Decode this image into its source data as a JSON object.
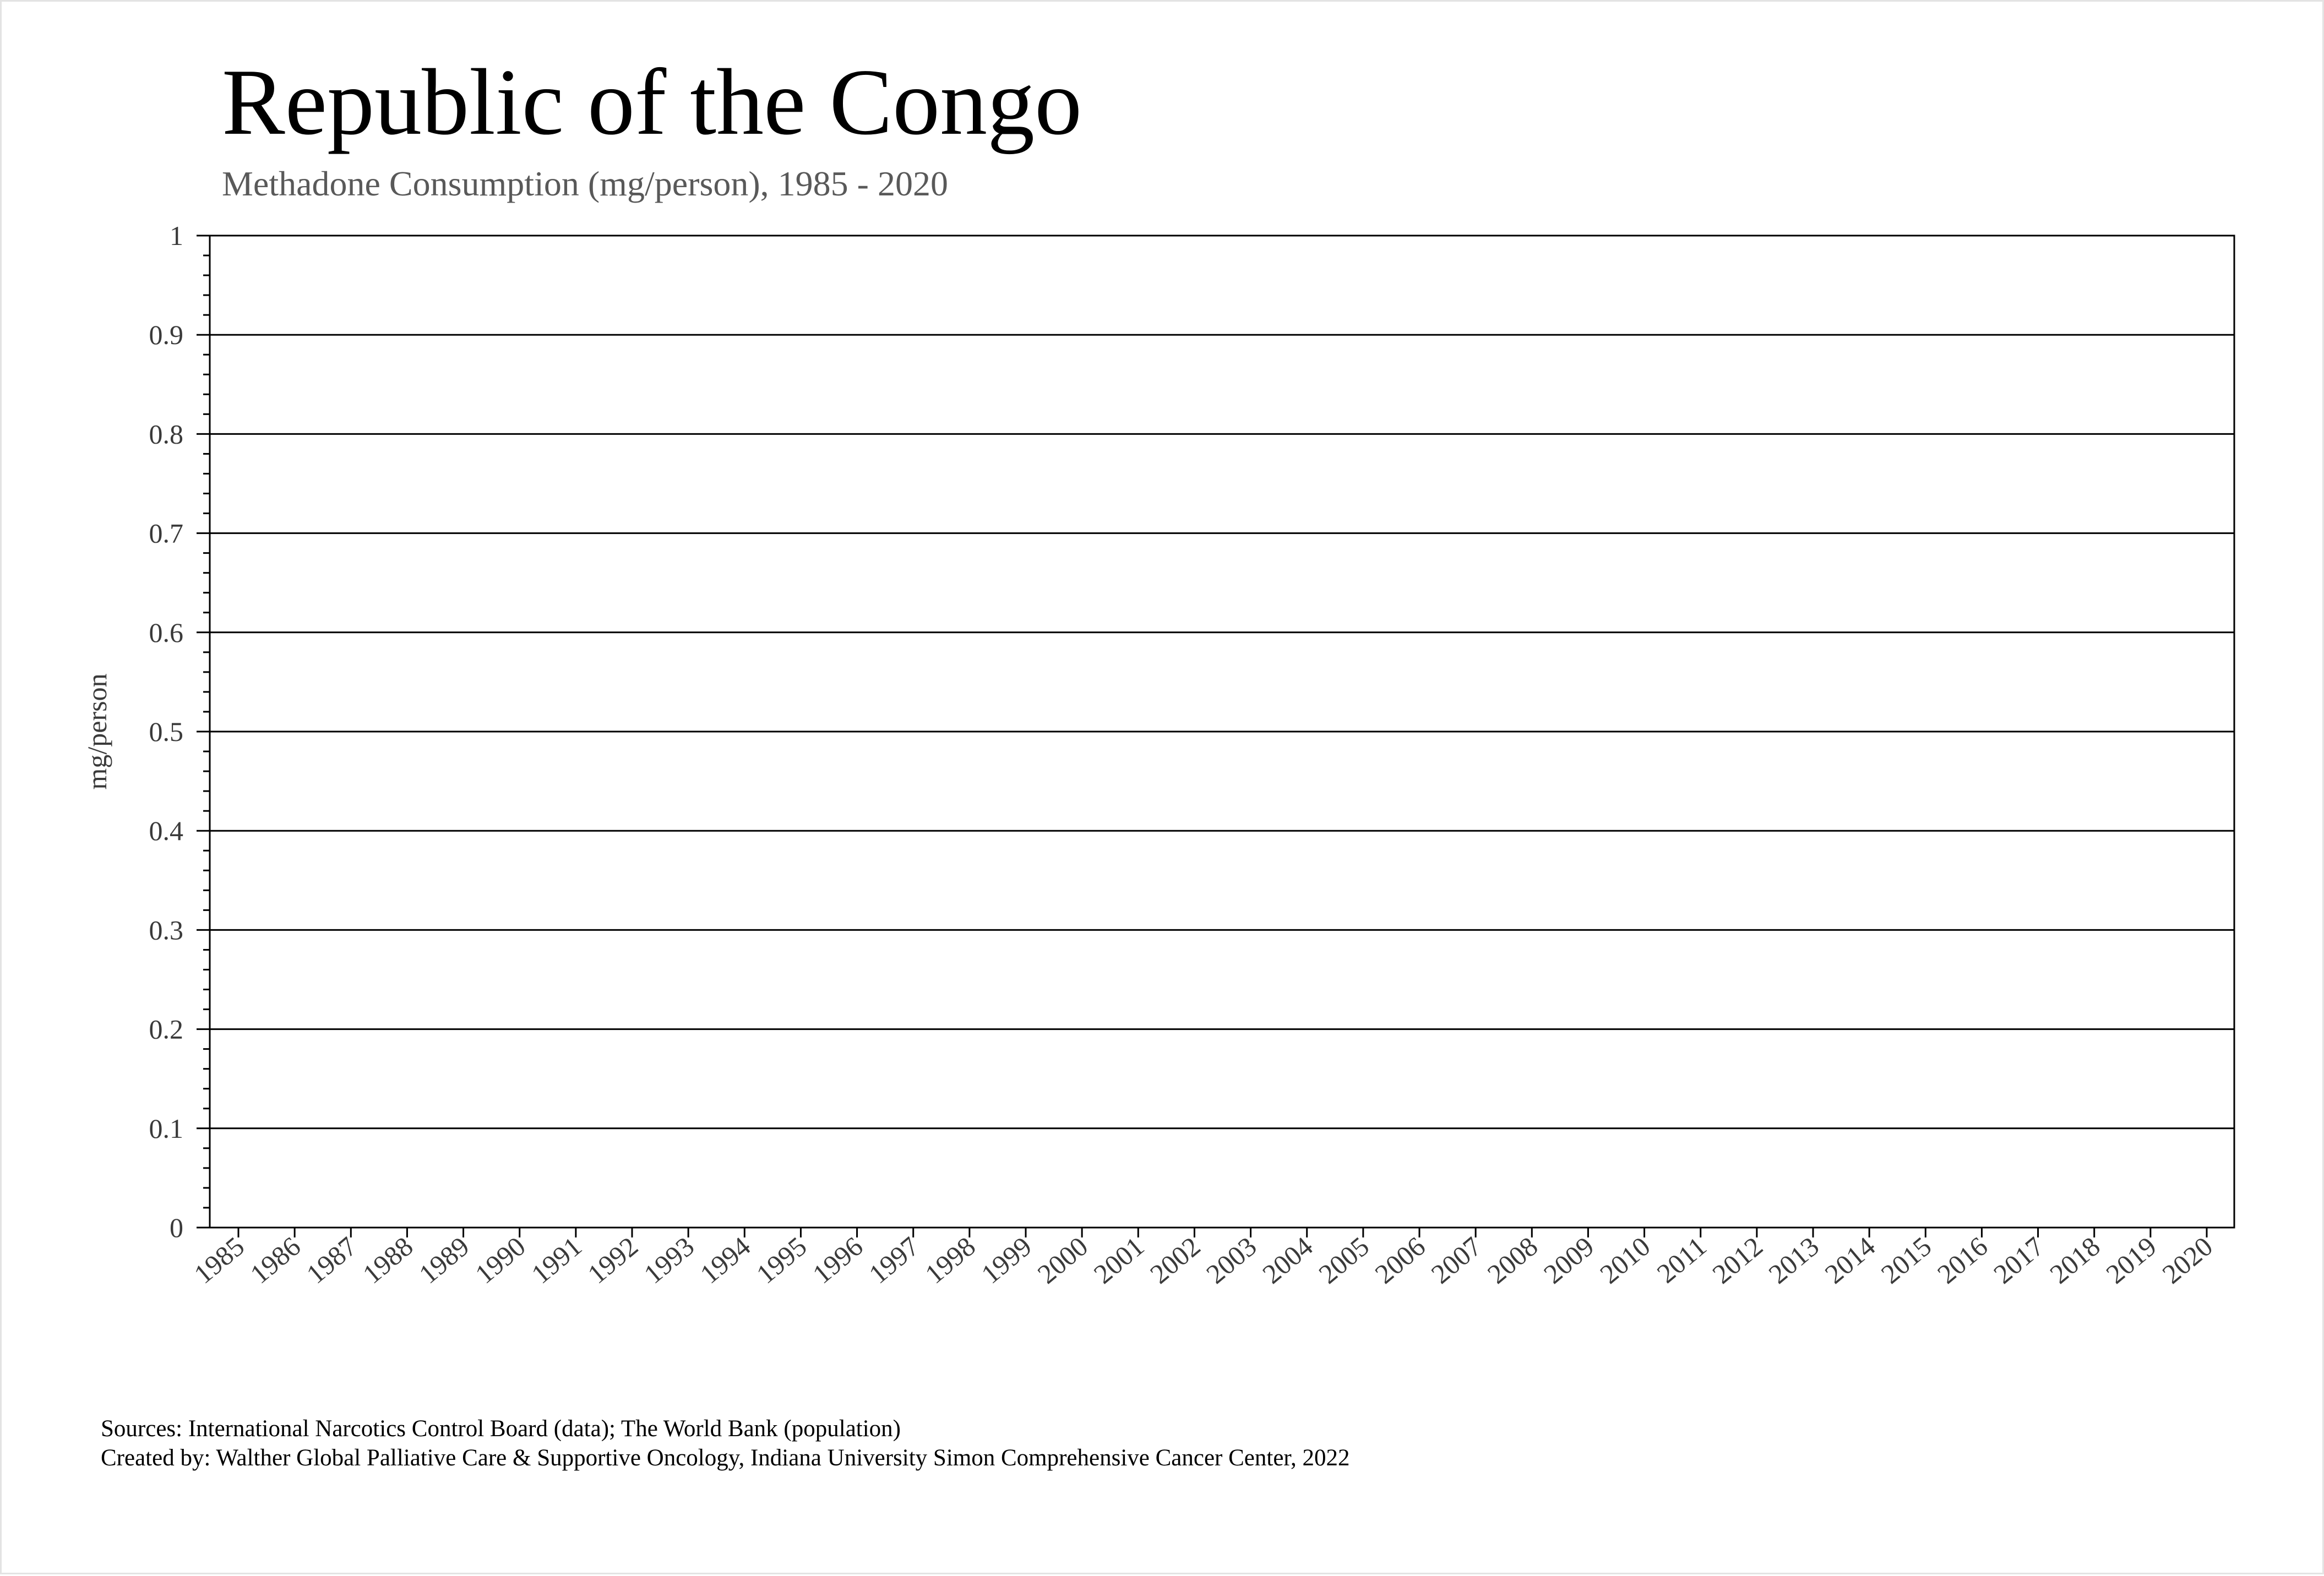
{
  "chart_data": {
    "type": "line",
    "title": "Republic of the Congo",
    "subtitle": "Methadone Consumption (mg/person), 1985 - 2020",
    "xlabel": "",
    "ylabel": "mg/person",
    "x": [
      "1985",
      "1986",
      "1987",
      "1988",
      "1989",
      "1990",
      "1991",
      "1992",
      "1993",
      "1994",
      "1995",
      "1996",
      "1997",
      "1998",
      "1999",
      "2000",
      "2001",
      "2002",
      "2003",
      "2004",
      "2005",
      "2006",
      "2007",
      "2008",
      "2009",
      "2010",
      "2011",
      "2012",
      "2013",
      "2014",
      "2015",
      "2016",
      "2017",
      "2018",
      "2019",
      "2020"
    ],
    "yticks": [
      "0",
      "0.1",
      "0.2",
      "0.3",
      "0.4",
      "0.5",
      "0.6",
      "0.7",
      "0.8",
      "0.9",
      "1"
    ],
    "ylim": [
      0,
      1
    ],
    "grid": true,
    "series": []
  },
  "footer": {
    "sources": "Sources: International Narcotics Control Board (data); The World Bank (population)",
    "created_by": "Created by: Walther Global Palliative Care & Supportive Oncology, Indiana University Simon Comprehensive Cancer Center, 2022"
  }
}
